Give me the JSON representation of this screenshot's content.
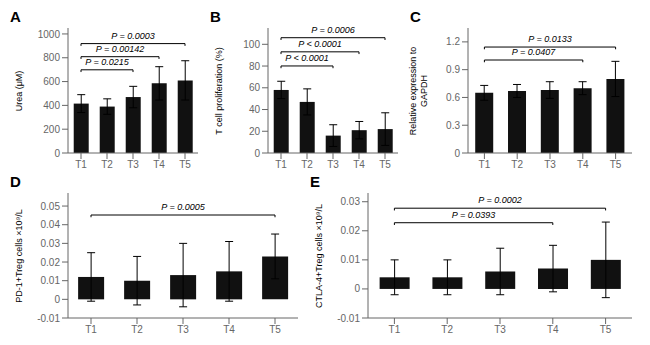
{
  "chart_data": [
    {
      "type": "bar",
      "title": "A",
      "ylabel": "Urea (μM)",
      "categories": [
        "T1",
        "T2",
        "T3",
        "T4",
        "T5"
      ],
      "values": [
        415,
        390,
        470,
        585,
        610
      ],
      "errors": [
        75,
        65,
        90,
        140,
        165
      ],
      "color": "#111111",
      "ylim": [
        0,
        1050
      ],
      "yticks": [
        0,
        200,
        400,
        600,
        800,
        1000
      ],
      "grid": false,
      "annotations": [
        {
          "text": "P = 0.0215",
          "x1": "T1",
          "x2": "T3",
          "y": 680
        },
        {
          "text": "P = 0.00142",
          "x1": "T1",
          "x2": "T4",
          "y": 790
        },
        {
          "text": "P = 0.0003",
          "x1": "T1",
          "x2": "T5",
          "y": 900
        }
      ]
    },
    {
      "type": "bar",
      "title": "B",
      "ylabel": "T cell proliferation (%)",
      "categories": [
        "T1",
        "T2",
        "T3",
        "T4",
        "T5"
      ],
      "values": [
        58,
        47,
        16,
        21,
        22
      ],
      "errors": [
        8,
        12,
        10,
        8,
        15
      ],
      "color": "#111111",
      "ylim": [
        0,
        115
      ],
      "yticks": [
        0,
        20,
        40,
        60,
        80,
        100
      ],
      "grid": false,
      "annotations": [
        {
          "text": "P < 0.0001",
          "x1": "T1",
          "x2": "T3",
          "y": 78
        },
        {
          "text": "P < 0.0001",
          "x1": "T1",
          "x2": "T4",
          "y": 91
        },
        {
          "text": "P = 0.0006",
          "x1": "T1",
          "x2": "T5",
          "y": 104
        }
      ]
    },
    {
      "type": "bar",
      "title": "C",
      "ylabel": "Relative expression to\nGAPDH",
      "categories": [
        "T1",
        "T2",
        "T3",
        "T4",
        "T5"
      ],
      "values": [
        0.65,
        0.67,
        0.68,
        0.7,
        0.8
      ],
      "errors": [
        0.08,
        0.07,
        0.09,
        0.07,
        0.19
      ],
      "color": "#111111",
      "ylim": [
        0,
        1.35
      ],
      "yticks": [
        0,
        0.3,
        0.6,
        0.9,
        1.2
      ],
      "grid": false,
      "annotations": [
        {
          "text": "P = 0.0407",
          "x1": "T1",
          "x2": "T4",
          "y": 0.98
        },
        {
          "text": "P = 0.0133",
          "x1": "T1",
          "x2": "T5",
          "y": 1.12
        }
      ]
    },
    {
      "type": "bar",
      "title": "D",
      "ylabel": "PD-1+Treg cells ×10⁹/L",
      "categories": [
        "T1",
        "T2",
        "T3",
        "T4",
        "T5"
      ],
      "values": [
        0.012,
        0.01,
        0.013,
        0.015,
        0.023
      ],
      "errors": [
        0.013,
        0.013,
        0.017,
        0.016,
        0.012
      ],
      "color": "#111111",
      "ylim": [
        -0.01,
        0.057
      ],
      "yticks": [
        -0.01,
        0,
        0.01,
        0.02,
        0.03,
        0.04,
        0.05
      ],
      "grid": false,
      "annotations": [
        {
          "text": "P = 0.0005",
          "x1": "T1",
          "x2": "T5",
          "y": 0.044
        }
      ]
    },
    {
      "type": "bar",
      "title": "E",
      "ylabel": "CTLA-4+Treg cells ×10⁹/L",
      "categories": [
        "T1",
        "T2",
        "T3",
        "T4",
        "T5"
      ],
      "values": [
        0.004,
        0.004,
        0.006,
        0.007,
        0.01
      ],
      "errors": [
        0.006,
        0.006,
        0.008,
        0.008,
        0.013
      ],
      "color": "#111111",
      "ylim": [
        -0.01,
        0.033
      ],
      "yticks": [
        -0.01,
        0,
        0.01,
        0.02,
        0.03
      ],
      "grid": false,
      "annotations": [
        {
          "text": "P = 0.0393",
          "x1": "T1",
          "x2": "T4",
          "y": 0.022
        },
        {
          "text": "P = 0.0002",
          "x1": "T1",
          "x2": "T5",
          "y": 0.027
        }
      ]
    }
  ]
}
